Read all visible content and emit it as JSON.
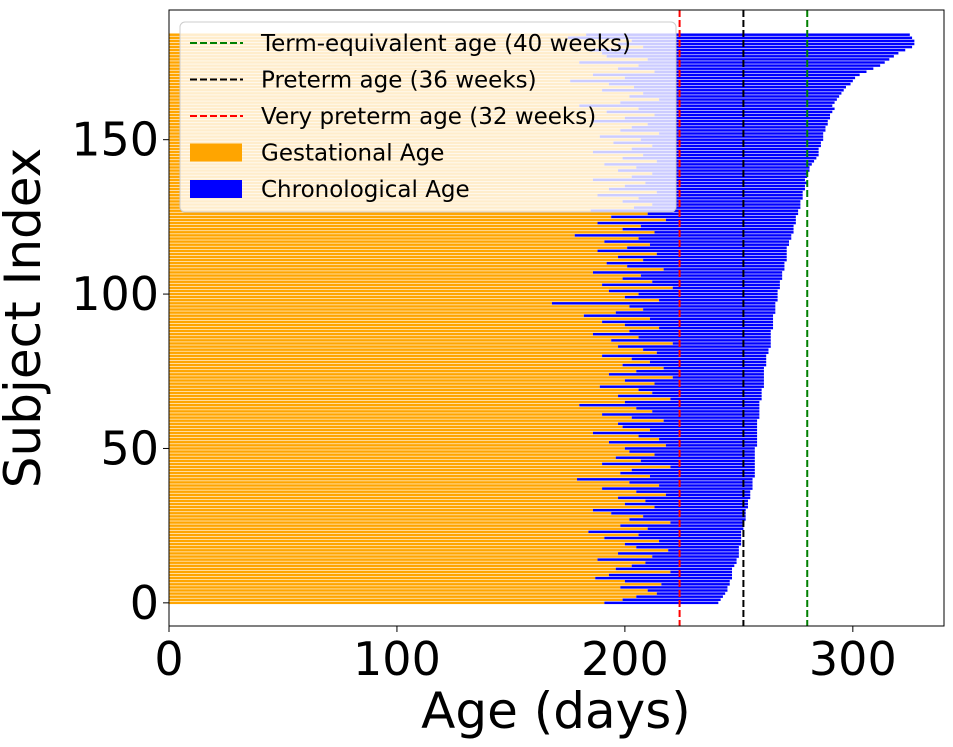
{
  "chart_data": {
    "type": "bar",
    "orientation": "horizontal",
    "stacked": true,
    "xlabel": "Age (days)",
    "ylabel": "Subject Index",
    "xlim": [
      0,
      340
    ],
    "ylim": [
      -7.5,
      192
    ],
    "x_ticks": [
      0,
      100,
      200,
      300
    ],
    "y_ticks": [
      0,
      50,
      100,
      150
    ],
    "grid": false,
    "legend_position": "upper-left",
    "n_subjects": 185,
    "series": [
      {
        "name": "Gestational Age",
        "color": "#FFA500",
        "values": [
          191,
          199,
          205,
          214,
          210,
          198,
          216,
          200,
          187,
          193,
          220,
          196,
          203,
          209,
          188,
          212,
          197,
          219,
          205,
          200,
          215,
          191,
          206,
          184,
          210,
          198,
          220,
          202,
          208,
          194,
          186,
          213,
          200,
          209,
          197,
          218,
          205,
          190,
          215,
          202,
          179,
          211,
          198,
          203,
          220,
          190,
          207,
          196,
          213,
          202,
          200,
          218,
          193,
          215,
          206,
          186,
          211,
          199,
          197,
          217,
          203,
          190,
          212,
          205,
          180,
          200,
          220,
          197,
          212,
          206,
          189,
          213,
          200,
          221,
          193,
          205,
          217,
          199,
          211,
          203,
          190,
          214,
          208,
          197,
          221,
          194,
          206,
          186,
          202,
          215,
          200,
          190,
          211,
          182,
          196,
          208,
          202,
          168,
          215,
          200,
          206,
          193,
          221,
          190,
          212,
          199,
          207,
          186,
          217,
          201,
          192,
          208,
          197,
          214,
          188,
          201,
          211,
          191,
          206,
          178,
          213,
          199,
          207,
          188,
          218,
          194,
          210,
          185,
          204,
          212,
          199,
          206,
          188,
          214,
          193,
          200,
          209,
          186,
          203,
          212,
          197,
          205,
          191,
          214,
          199,
          208,
          186,
          203,
          212,
          195,
          207,
          189,
          215,
          198,
          203,
          210,
          186,
          200,
          213,
          192,
          206,
          180,
          198,
          215,
          202,
          208,
          190,
          204,
          193,
          176,
          200,
          186,
          213,
          197,
          206,
          180,
          210,
          192,
          190,
          185,
          208,
          197,
          203,
          175,
          183
        ]
      },
      {
        "name": "Chronological Age",
        "color": "#0000FF",
        "values": [
          50,
          43,
          38,
          30,
          35,
          47,
          30,
          46,
          60,
          54,
          27,
          51,
          45,
          40,
          61,
          38,
          53,
          31,
          45,
          51,
          36,
          60,
          45,
          67,
          42,
          54,
          32,
          51,
          45,
          59,
          67,
          41,
          54,
          45,
          58,
          37,
          50,
          66,
          41,
          54,
          77,
          46,
          59,
          54,
          37,
          67,
          50,
          61,
          44,
          55,
          57,
          40,
          65,
          43,
          52,
          72,
          47,
          59,
          61,
          41,
          56,
          69,
          47,
          54,
          79,
          59,
          40,
          63,
          48,
          54,
          72,
          48,
          61,
          40,
          68,
          56,
          44,
          63,
          51,
          59,
          72,
          49,
          55,
          67,
          43,
          70,
          58,
          78,
          62,
          50,
          65,
          75,
          54,
          83,
          70,
          58,
          64,
          98,
          52,
          67,
          61,
          74,
          47,
          78,
          56,
          70,
          62,
          83,
          53,
          69,
          78,
          63,
          74,
          57,
          83,
          70,
          61,
          81,
          67,
          95,
          61,
          75,
          67,
          87,
          57,
          81,
          66,
          91,
          73,
          65,
          78,
          72,
          90,
          64,
          86,
          79,
          71,
          93,
          77,
          68,
          84,
          76,
          91,
          69,
          85,
          77,
          99,
          82,
          74,
          91,
          80,
          98,
          72,
          90,
          85,
          79,
          103,
          90,
          77,
          99,
          86,
          111,
          94,
          78,
          92,
          87,
          106,
          93,
          106,
          124,
          101,
          117,
          93,
          112,
          106,
          134,
          106,
          126,
          130,
          138,
          118,
          130,
          124,
          151,
          142
        ]
      },
      {
        "name": "Term-equivalent age (40 weeks)",
        "color": "#008000",
        "style": "dashed-vline",
        "x": 280
      },
      {
        "name": "Preterm age (36 weeks)",
        "color": "#000000",
        "style": "dashed-vline",
        "x": 252
      },
      {
        "name": "Very preterm age (32 weeks)",
        "color": "#FF0000",
        "style": "dashed-vline",
        "x": 224
      }
    ]
  }
}
